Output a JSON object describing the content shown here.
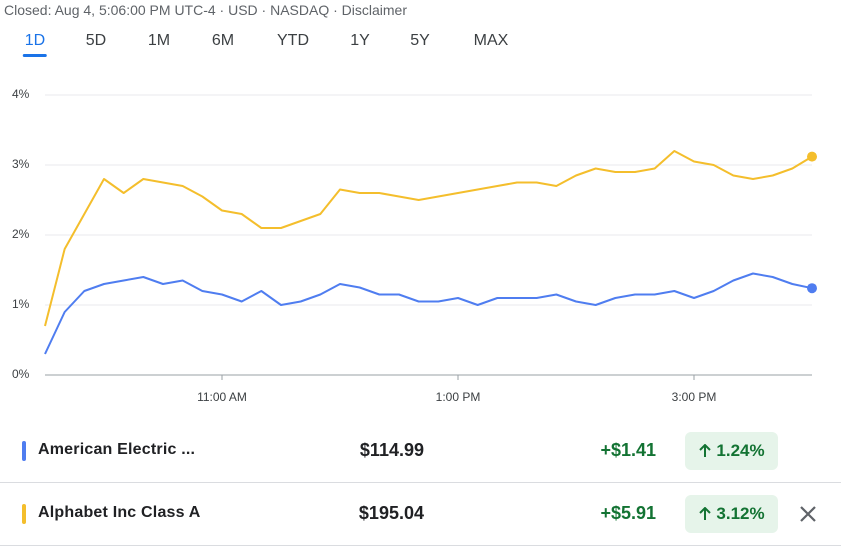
{
  "header": "Closed: Aug 4, 5:06:00 PM UTC-4 · USD · NASDAQ · Disclaimer",
  "tabs": [
    "1D",
    "5D",
    "1M",
    "6M",
    "YTD",
    "1Y",
    "5Y",
    "MAX"
  ],
  "selected_tab": 0,
  "chart_data": {
    "type": "line",
    "x": [
      570,
      580,
      590,
      600,
      610,
      620,
      630,
      640,
      650,
      660,
      670,
      680,
      690,
      700,
      710,
      720,
      730,
      740,
      750,
      760,
      770,
      780,
      790,
      800,
      810,
      820,
      830,
      840,
      850,
      860,
      870,
      880,
      890,
      900,
      910,
      920,
      930,
      940,
      950,
      960
    ],
    "xlim": [
      570,
      960
    ],
    "xticks": [
      {
        "value": 660,
        "label": "11:00 AM"
      },
      {
        "value": 780,
        "label": "1:00 PM"
      },
      {
        "value": 900,
        "label": "3:00 PM"
      }
    ],
    "ylim": [
      0,
      4
    ],
    "yticks": [
      {
        "value": 0,
        "label": "0%"
      },
      {
        "value": 1,
        "label": "1%"
      },
      {
        "value": 2,
        "label": "2%"
      },
      {
        "value": 3,
        "label": "3%"
      },
      {
        "value": 4,
        "label": "4%"
      }
    ],
    "grid": true,
    "series": [
      {
        "name": "American Electric ...",
        "color": "#4f7df0",
        "values": [
          0.3,
          0.9,
          1.2,
          1.3,
          1.35,
          1.4,
          1.3,
          1.35,
          1.2,
          1.15,
          1.05,
          1.2,
          1.0,
          1.05,
          1.15,
          1.3,
          1.25,
          1.15,
          1.15,
          1.05,
          1.05,
          1.1,
          1.0,
          1.1,
          1.1,
          1.1,
          1.15,
          1.05,
          1.0,
          1.1,
          1.15,
          1.15,
          1.2,
          1.1,
          1.2,
          1.35,
          1.45,
          1.4,
          1.3,
          1.24
        ]
      },
      {
        "name": "Alphabet Inc Class A",
        "color": "#f4be2c",
        "values": [
          0.7,
          1.8,
          2.3,
          2.8,
          2.6,
          2.8,
          2.75,
          2.7,
          2.55,
          2.35,
          2.3,
          2.1,
          2.1,
          2.2,
          2.3,
          2.65,
          2.6,
          2.6,
          2.55,
          2.5,
          2.55,
          2.6,
          2.65,
          2.7,
          2.75,
          2.75,
          2.7,
          2.85,
          2.95,
          2.9,
          2.9,
          2.95,
          3.2,
          3.05,
          3.0,
          2.85,
          2.8,
          2.85,
          2.95,
          3.12
        ]
      }
    ]
  },
  "quotes": [
    {
      "price": "$114.99",
      "change": "+$1.41",
      "percent": "1.24%"
    },
    {
      "price": "$195.04",
      "change": "+$5.91",
      "percent": "3.12%"
    }
  ]
}
